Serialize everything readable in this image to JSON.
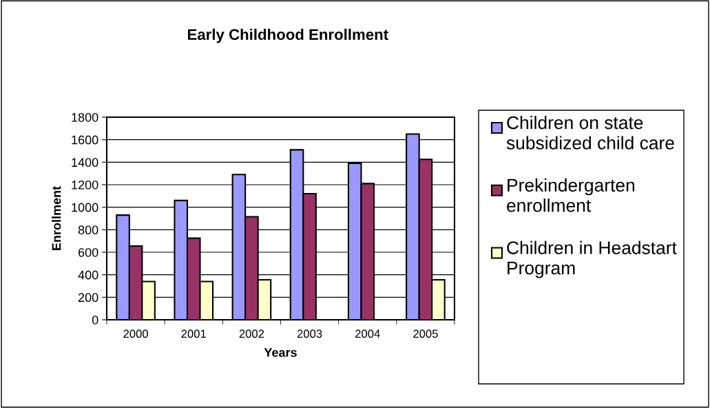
{
  "chart_data": {
    "type": "bar",
    "title": "Early Childhood Enrollment",
    "xlabel": "Years",
    "ylabel": "Enrollment",
    "categories": [
      "2000",
      "2001",
      "2002",
      "2003",
      "2004",
      "2005"
    ],
    "series": [
      {
        "name": "Children on state subsidized child care",
        "color": "#9999ff",
        "values": [
          930,
          1060,
          1290,
          1510,
          1390,
          1650
        ]
      },
      {
        "name": "Prekindergarten enrollment",
        "color": "#993366",
        "values": [
          655,
          725,
          915,
          1120,
          1210,
          1425
        ]
      },
      {
        "name": "Children in Headstart Program",
        "color": "#ffffcc",
        "values": [
          340,
          340,
          355,
          null,
          null,
          355
        ]
      }
    ],
    "ylim": [
      0,
      1800
    ],
    "yticks": [
      0,
      200,
      400,
      600,
      800,
      1000,
      1200,
      1400,
      1600,
      1800
    ],
    "grid": "y",
    "legend": "right"
  }
}
